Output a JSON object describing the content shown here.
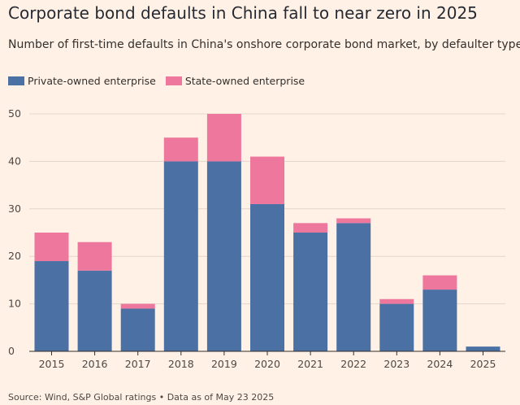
{
  "title": "Corporate bond defaults in China fall to near zero in 2025",
  "subtitle": "Number of first-time defaults in China's onshore corporate bond market, by defaulter type",
  "source": "Source: Wind, S&P Global ratings • Data as of May 23 2025",
  "colors": {
    "background": "#FFF1E5",
    "private": "#4A70A4",
    "state": "#EE779E",
    "grid": "#E3D6CC",
    "axis": "#33302E"
  },
  "chart_data": {
    "type": "bar",
    "stacked": true,
    "categories": [
      "2015",
      "2016",
      "2017",
      "2018",
      "2019",
      "2020",
      "2021",
      "2022",
      "2023",
      "2024",
      "2025"
    ],
    "series": [
      {
        "name": "Private-owned enterprise",
        "values": [
          19,
          17,
          9,
          40,
          40,
          31,
          25,
          27,
          10,
          13,
          1
        ]
      },
      {
        "name": "State-owned enterprise",
        "values": [
          6,
          6,
          1,
          5,
          10,
          10,
          2,
          1,
          1,
          3,
          0
        ]
      }
    ],
    "yticks": [
      "0",
      "10",
      "20",
      "30",
      "40",
      "50"
    ],
    "ylim": [
      0,
      50
    ],
    "grid": true,
    "legend_position": "top-left"
  }
}
